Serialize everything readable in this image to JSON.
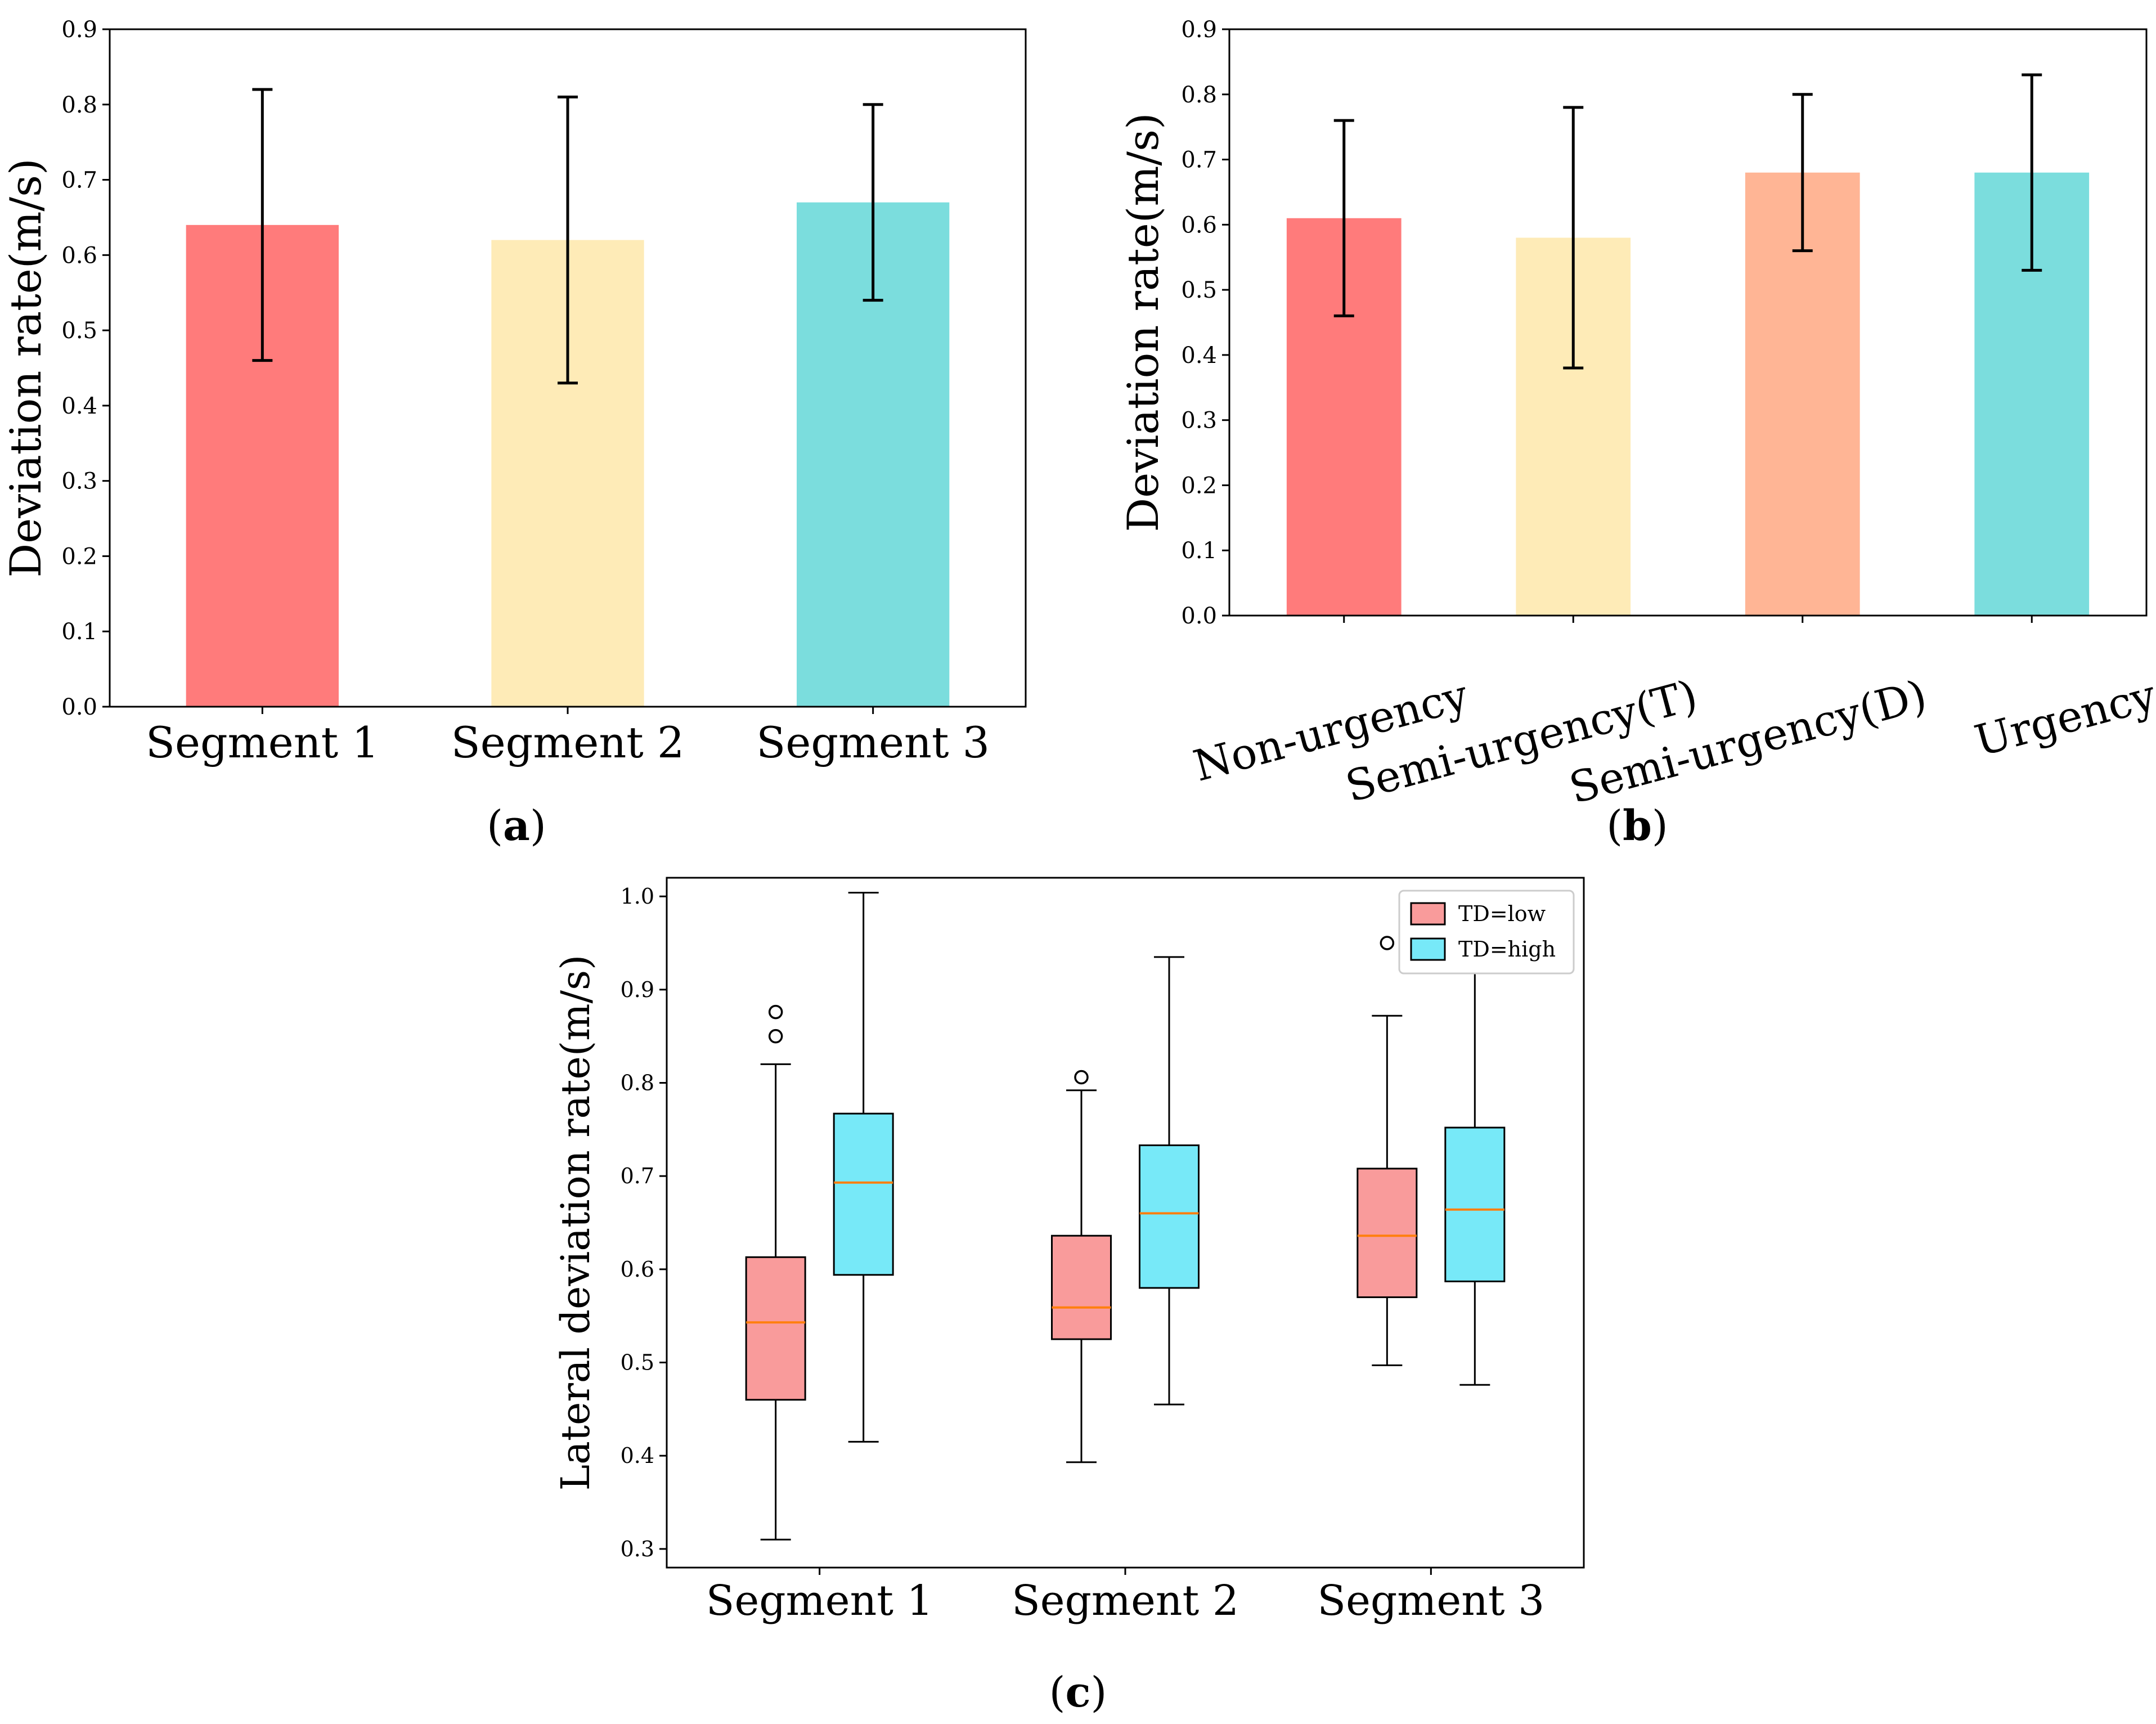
{
  "chart_data": [
    {
      "panel": "a",
      "caption": "a",
      "type": "bar",
      "title": "",
      "xlabel": "",
      "ylabel": "Deviation rate(m/s)",
      "ylim": [
        0,
        0.9
      ],
      "yticks": [
        "0.0",
        "0.1",
        "0.2",
        "0.3",
        "0.4",
        "0.5",
        "0.6",
        "0.7",
        "0.8",
        "0.9"
      ],
      "categories": [
        "Segment 1",
        "Segment 2",
        "Segment 3"
      ],
      "values": [
        0.64,
        0.62,
        0.67
      ],
      "error_low": [
        0.46,
        0.43,
        0.54
      ],
      "error_high": [
        0.82,
        0.81,
        0.8
      ],
      "colors": [
        "#ff7b7b",
        "#feebb7",
        "#7bdddd"
      ]
    },
    {
      "panel": "b",
      "caption": "b",
      "type": "bar",
      "title": "",
      "xlabel": "",
      "ylabel": "Deviation rate(m/s)",
      "ylim": [
        0,
        0.9
      ],
      "yticks": [
        "0.0",
        "0.1",
        "0.2",
        "0.3",
        "0.4",
        "0.5",
        "0.6",
        "0.7",
        "0.8",
        "0.9"
      ],
      "categories": [
        "Non-urgency",
        "Semi-urgency(T)",
        "Semi-urgency(D)",
        "Urgency"
      ],
      "values": [
        0.61,
        0.58,
        0.68,
        0.68
      ],
      "error_low": [
        0.46,
        0.38,
        0.56,
        0.53
      ],
      "error_high": [
        0.76,
        0.78,
        0.8,
        0.83
      ],
      "colors": [
        "#ff7b7b",
        "#feebb7",
        "#ffb595",
        "#7bdddd"
      ]
    },
    {
      "panel": "c",
      "caption": "c",
      "type": "box",
      "title": "",
      "xlabel": "",
      "ylabel": "Lateral deviation rate(m/s)",
      "ylim": [
        0.28,
        1.02
      ],
      "yticks": [
        "0.3",
        "0.4",
        "0.5",
        "0.6",
        "0.7",
        "0.8",
        "0.9",
        "1.0"
      ],
      "categories": [
        "Segment 1",
        "Segment 2",
        "Segment 3"
      ],
      "legend_position": "top-right",
      "series": [
        {
          "name": "TD=low",
          "color": "#f99b9b",
          "boxes": [
            {
              "whisker_low": 0.31,
              "q1": 0.46,
              "median": 0.543,
              "q3": 0.613,
              "whisker_high": 0.82,
              "outliers": [
                0.85,
                0.876
              ]
            },
            {
              "whisker_low": 0.393,
              "q1": 0.525,
              "median": 0.559,
              "q3": 0.636,
              "whisker_high": 0.792,
              "outliers": [
                0.806
              ]
            },
            {
              "whisker_low": 0.497,
              "q1": 0.57,
              "median": 0.636,
              "q3": 0.708,
              "whisker_high": 0.872,
              "outliers": [
                0.95
              ]
            }
          ]
        },
        {
          "name": "TD=high",
          "color": "#77e9f8",
          "boxes": [
            {
              "whisker_low": 0.415,
              "q1": 0.594,
              "median": 0.693,
              "q3": 0.767,
              "whisker_high": 1.004,
              "outliers": []
            },
            {
              "whisker_low": 0.455,
              "q1": 0.58,
              "median": 0.66,
              "q3": 0.733,
              "whisker_high": 0.935,
              "outliers": []
            },
            {
              "whisker_low": 0.476,
              "q1": 0.587,
              "median": 0.664,
              "q3": 0.752,
              "whisker_high": 0.932,
              "outliers": []
            }
          ]
        }
      ],
      "median_color": "#ff7f0e"
    }
  ]
}
